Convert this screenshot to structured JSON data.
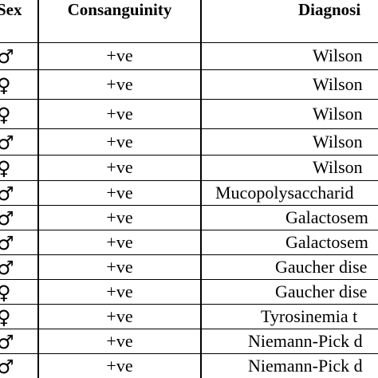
{
  "table": {
    "header": [
      "Sex",
      "Consanguinity",
      "Diagnosi"
    ],
    "rows": [
      [
        "♂",
        "+ve",
        "Wilson"
      ],
      [
        "♀",
        "+ve",
        "Wilson"
      ],
      [
        "♀",
        "+ve",
        "Wilson"
      ],
      [
        "♂",
        "+ve",
        "Wilson"
      ],
      [
        "♀",
        "+ve",
        "Wilson"
      ],
      [
        "♂",
        "+ve",
        "Mucopolysaccharid"
      ],
      [
        "♂",
        "+ve",
        "Galactosem"
      ],
      [
        "♂",
        "+ve",
        "Galactosem"
      ],
      [
        "♂",
        "+ve",
        "Gaucher dise"
      ],
      [
        "♀",
        "+ve",
        "Gaucher dise"
      ],
      [
        "♀",
        "+ve",
        "Tyrosinemia t"
      ],
      [
        "♂",
        "+ve",
        "Niemann-Pick d"
      ],
      [
        "♂",
        "+ve",
        "Niemann-Pick d"
      ]
    ]
  }
}
